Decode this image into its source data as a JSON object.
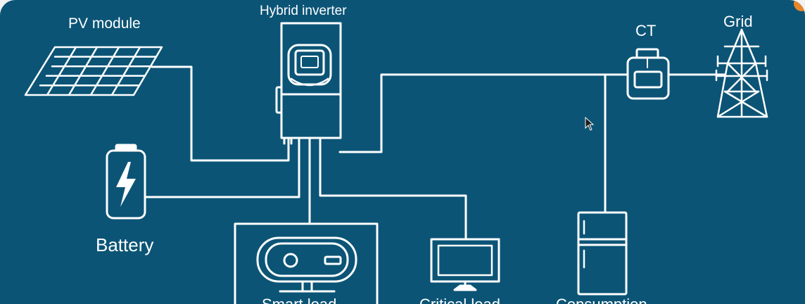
{
  "labels": {
    "pv_module": "PV module",
    "hybrid_inverter": "Hybrid inverter",
    "ct": "CT",
    "grid": "Grid",
    "battery": "Battery",
    "smart_load": "Smart load",
    "critical_load": "Critical load",
    "consumption": "Consumption"
  },
  "icons": {
    "pv": "solar-panel-icon",
    "inverter": "inverter-icon",
    "battery": "battery-icon",
    "ct": "current-transformer-icon",
    "grid": "power-tower-icon",
    "smart_load": "water-heater-icon",
    "critical_load": "monitor-icon",
    "consumption": "refrigerator-icon",
    "cursor": "mouse-cursor-icon"
  },
  "colors": {
    "background": "#0b5476",
    "line": "#ffffff",
    "accent": "#e8862a"
  }
}
